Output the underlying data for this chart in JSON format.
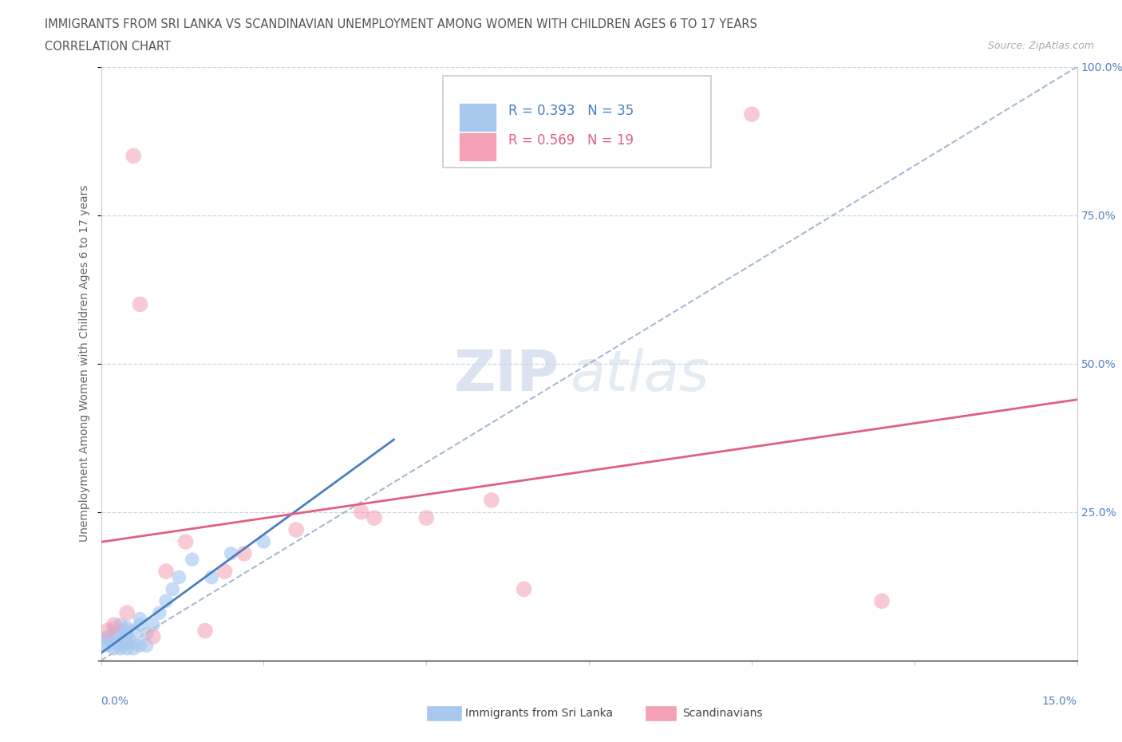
{
  "title_line1": "IMMIGRANTS FROM SRI LANKA VS SCANDINAVIAN UNEMPLOYMENT AMONG WOMEN WITH CHILDREN AGES 6 TO 17 YEARS",
  "title_line2": "CORRELATION CHART",
  "source_text": "Source: ZipAtlas.com",
  "ylabel_label": "Unemployment Among Women with Children Ages 6 to 17 years",
  "watermark_zip": "ZIP",
  "watermark_atlas": "atlas",
  "legend_sri_lanka": "Immigrants from Sri Lanka",
  "legend_scandinavians": "Scandinavians",
  "sri_lanka_R": "R = 0.393",
  "sri_lanka_N": "N = 35",
  "scandinavians_R": "R = 0.569",
  "scandinavians_N": "N = 19",
  "sri_lanka_color": "#a8c8f0",
  "scandinavians_color": "#f4a0b5",
  "sri_lanka_line_color": "#4a7fc0",
  "scandinavians_line_color": "#e06080",
  "reference_line_color": "#90a8c8",
  "xlim": [
    0,
    0.15
  ],
  "ylim": [
    0,
    1.0
  ],
  "sl_x": [
    0.0,
    0.001,
    0.001,
    0.001,
    0.002,
    0.002,
    0.002,
    0.002,
    0.003,
    0.003,
    0.003,
    0.003,
    0.003,
    0.004,
    0.004,
    0.004,
    0.004,
    0.004,
    0.005,
    0.005,
    0.005,
    0.006,
    0.006,
    0.006,
    0.007,
    0.007,
    0.008,
    0.009,
    0.01,
    0.011,
    0.012,
    0.014,
    0.017,
    0.02,
    0.025
  ],
  "sl_y": [
    0.03,
    0.025,
    0.035,
    0.04,
    0.02,
    0.03,
    0.045,
    0.055,
    0.02,
    0.025,
    0.035,
    0.05,
    0.06,
    0.02,
    0.03,
    0.04,
    0.05,
    0.055,
    0.02,
    0.03,
    0.05,
    0.025,
    0.06,
    0.07,
    0.025,
    0.045,
    0.06,
    0.08,
    0.1,
    0.12,
    0.14,
    0.17,
    0.14,
    0.18,
    0.2
  ],
  "sc_x": [
    0.001,
    0.002,
    0.004,
    0.005,
    0.006,
    0.008,
    0.01,
    0.013,
    0.016,
    0.019,
    0.022,
    0.03,
    0.04,
    0.042,
    0.05,
    0.06,
    0.065,
    0.1,
    0.12
  ],
  "sc_y": [
    0.05,
    0.06,
    0.08,
    0.85,
    0.6,
    0.04,
    0.15,
    0.2,
    0.05,
    0.15,
    0.18,
    0.22,
    0.25,
    0.24,
    0.24,
    0.27,
    0.12,
    0.92,
    0.1
  ],
  "background_color": "#ffffff",
  "grid_color": "#c8d4e8",
  "title_color": "#555555",
  "axis_label_color": "#5580c0"
}
